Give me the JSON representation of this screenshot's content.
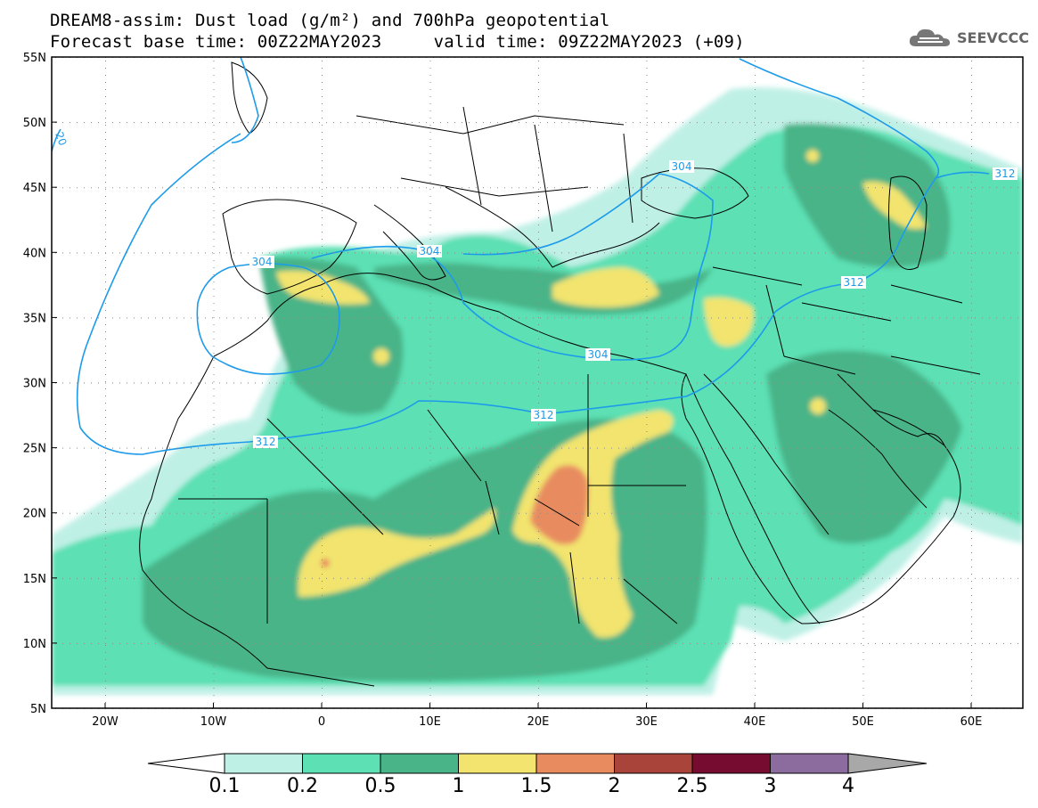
{
  "header": {
    "line1": "DREAM8-assim: Dust load (g/m²) and 700hPa geopotential",
    "line2": "Forecast base time: 00Z22MAY2023     valid time: 09Z22MAY2023 (+09)"
  },
  "logo": {
    "text": "SEEVCCC",
    "icon": "cloud-icon"
  },
  "axes": {
    "lat_labels": [
      "55N",
      "50N",
      "45N",
      "40N",
      "35N",
      "30N",
      "25N",
      "20N",
      "15N",
      "10N",
      "5N"
    ],
    "lon_labels": [
      "20W",
      "10W",
      "0",
      "10E",
      "20E",
      "30E",
      "40E",
      "50E",
      "60E"
    ]
  },
  "contours": {
    "labels": [
      "304",
      "304",
      "304",
      "304",
      "312",
      "312",
      "312",
      "312",
      "20"
    ]
  },
  "colorbar": {
    "labels": [
      "0.1",
      "0.2",
      "0.5",
      "1",
      "1.5",
      "2",
      "2.5",
      "3",
      "4"
    ],
    "colors": [
      "#bff0e6",
      "#5ce0b4",
      "#48b488",
      "#f2e46e",
      "#e88c60",
      "#a8443a",
      "#760c30",
      "#8c6c9e"
    ],
    "over_color": "#a8a8a8",
    "under_color": "#ffffff"
  }
}
